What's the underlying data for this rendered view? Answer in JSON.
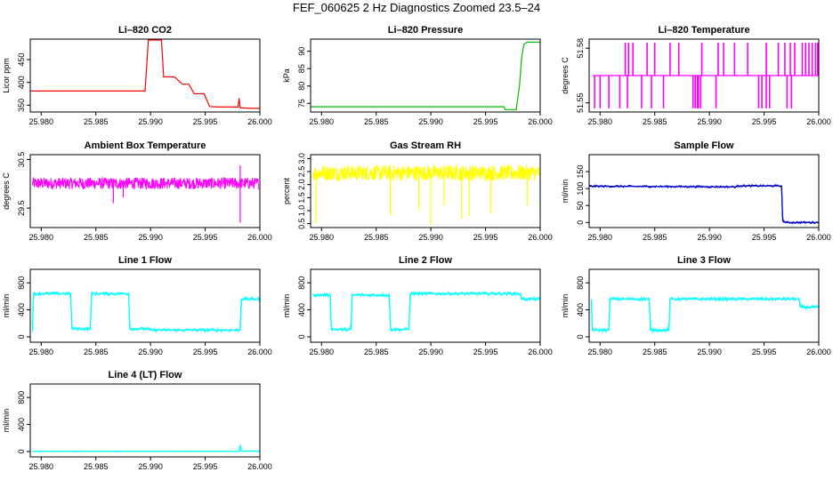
{
  "page_title": "FEF_060625  2 Hz Diagnostics Zoomed 23.5–24",
  "chart_data": [
    {
      "type": "line",
      "title": "Li–820 CO2",
      "ylabel": "Licor ppm",
      "xlim": [
        25.979,
        26.0
      ],
      "ylim": [
        335,
        495
      ],
      "xticks": [
        "25.980",
        "25.985",
        "25.990",
        "25.995",
        "26.000"
      ],
      "xtick_values": [
        25.98,
        25.985,
        25.99,
        25.995,
        26.0
      ],
      "yticks": [
        "350",
        "400",
        "450"
      ],
      "ytick_values": [
        350,
        400,
        450
      ],
      "color": "#ff0000",
      "series": [
        {
          "x": [
            25.979,
            25.9895,
            25.9898,
            25.991,
            25.9912,
            25.9922,
            25.9929,
            25.9935,
            25.994,
            25.9949,
            25.9954,
            25.9962,
            25.9975,
            25.998,
            25.9981,
            25.9982,
            25.9985,
            25.999,
            26.0
          ],
          "y": [
            381,
            381,
            493,
            493,
            412,
            412,
            396,
            396,
            375,
            375,
            347,
            346,
            346,
            346,
            365,
            344,
            344,
            343,
            343
          ]
        }
      ]
    },
    {
      "type": "line",
      "title": "Li–820 Pressure",
      "ylabel": "kPa",
      "xlim": [
        25.979,
        26.0
      ],
      "ylim": [
        72.5,
        93.5
      ],
      "xticks": [
        "25.980",
        "25.985",
        "25.990",
        "25.995",
        "26.000"
      ],
      "xtick_values": [
        25.98,
        25.985,
        25.99,
        25.995,
        26.0
      ],
      "yticks": [
        "75",
        "80",
        "85",
        "90"
      ],
      "ytick_values": [
        75,
        80,
        85,
        90
      ],
      "color": "#00bb00",
      "series": [
        {
          "x": [
            25.979,
            25.9967,
            25.9968,
            25.9978,
            25.9981,
            25.9983,
            25.9985,
            25.9988,
            26.0
          ],
          "y": [
            74,
            74,
            73.2,
            73.2,
            80,
            88,
            92,
            92.6,
            92.6
          ]
        }
      ]
    },
    {
      "type": "line",
      "title": "Li–820 Temperature",
      "ylabel": "degrees C",
      "xlim": [
        25.979,
        26.0
      ],
      "ylim": [
        51.545,
        51.585
      ],
      "xticks": [
        "25.980",
        "25.985",
        "25.990",
        "25.995",
        "26.000"
      ],
      "xtick_values": [
        25.98,
        25.985,
        25.99,
        25.995,
        26.0
      ],
      "yticks": [
        "51.55",
        "51.58"
      ],
      "ytick_values": [
        51.55,
        51.58
      ],
      "color": "#ff00ff",
      "baseline": 51.565,
      "high": 51.583,
      "low": 51.547,
      "spikes_up": [
        25.9823,
        25.9826,
        25.983,
        25.9843,
        25.985,
        25.9864,
        25.9872,
        25.9893,
        25.9908,
        25.9913,
        25.9923,
        25.9935,
        25.9952,
        25.9963,
        25.9969,
        25.9974,
        25.9978,
        25.9985,
        25.9988,
        25.9991,
        25.9994,
        25.9997,
        25.9999
      ],
      "spikes_down": [
        25.9795,
        25.98,
        25.9808,
        25.9818,
        25.9825,
        25.9838,
        25.9847,
        25.9858,
        25.9885,
        25.9887,
        25.9889,
        25.989,
        25.9892,
        25.9906,
        25.9945,
        25.9948,
        25.9952,
        25.9955,
        25.9971,
        25.9975
      ]
    },
    {
      "type": "line",
      "title": "Ambient Box Temperature",
      "ylabel": "degrees C",
      "xlim": [
        25.979,
        26.0
      ],
      "ylim": [
        29.1,
        30.6
      ],
      "xticks": [
        "25.980",
        "25.985",
        "25.990",
        "25.995",
        "26.000"
      ],
      "xtick_values": [
        25.98,
        25.985,
        25.99,
        25.995,
        26.0
      ],
      "yticks": [
        "29.5",
        "30.5"
      ],
      "ytick_values": [
        29.5,
        30.5
      ],
      "color": "#ff00ff",
      "noise": {
        "center": 30.01,
        "amplitude": 0.12
      },
      "spikes": [
        [
          25.9866,
          29.6
        ],
        [
          25.9875,
          29.72
        ],
        [
          25.9982,
          29.2
        ],
        [
          25.9982,
          30.38
        ]
      ]
    },
    {
      "type": "line",
      "title": "Gas Stream RH",
      "ylabel": "percent",
      "xlim": [
        25.979,
        26.0
      ],
      "ylim": [
        0.35,
        3.15
      ],
      "xticks": [
        "25.980",
        "25.985",
        "25.990",
        "25.995",
        "26.000"
      ],
      "xtick_values": [
        25.98,
        25.985,
        25.99,
        25.995,
        26.0
      ],
      "yticks": [
        "0.5",
        "1.0",
        "1.5",
        "2.0",
        "2.5",
        "3.0"
      ],
      "ytick_values": [
        0.5,
        1.0,
        1.5,
        2.0,
        2.5,
        3.0
      ],
      "color": "#ffff00",
      "noise": {
        "center": 2.45,
        "amplitude": 0.3
      },
      "spikes": [
        [
          25.9795,
          0.5
        ],
        [
          25.9863,
          0.8
        ],
        [
          25.9889,
          1.0
        ],
        [
          25.99,
          0.45
        ],
        [
          25.9912,
          1.2
        ],
        [
          25.9928,
          0.7
        ],
        [
          25.9935,
          0.8
        ],
        [
          25.9955,
          0.9
        ],
        [
          25.9988,
          1.2
        ]
      ]
    },
    {
      "type": "line",
      "title": "Sample Flow",
      "ylabel": "ml/min",
      "xlim": [
        25.979,
        26.0
      ],
      "ylim": [
        -15,
        200
      ],
      "xticks": [
        "25.980",
        "25.985",
        "25.990",
        "25.995",
        "26.000"
      ],
      "xtick_values": [
        25.98,
        25.985,
        25.99,
        25.995,
        26.0
      ],
      "yticks": [
        "0",
        "50",
        "100",
        "150"
      ],
      "ytick_values": [
        0,
        50,
        100,
        150
      ],
      "color": "#0000cc",
      "series": [
        {
          "x": [
            25.979,
            25.9925,
            25.9926,
            25.9966,
            25.9967,
            25.997,
            26.0
          ],
          "y": [
            107,
            105,
            108,
            108,
            5,
            0,
            0
          ]
        }
      ],
      "noise": {
        "amplitude": 3
      }
    },
    {
      "type": "line",
      "title": "Line 1 Flow",
      "ylabel": "ml/min",
      "xlim": [
        25.979,
        26.0
      ],
      "ylim": [
        -80,
        1000
      ],
      "xticks": [
        "25.980",
        "25.985",
        "25.990",
        "25.995",
        "26.000"
      ],
      "xtick_values": [
        25.98,
        25.985,
        25.99,
        25.995,
        26.0
      ],
      "yticks": [
        "0",
        "400",
        "800"
      ],
      "ytick_values": [
        0,
        400,
        800
      ],
      "color": "#00ffff",
      "series": [
        {
          "x": [
            25.9792,
            25.9793,
            25.9827,
            25.9828,
            25.9845,
            25.9846,
            25.988,
            25.9881,
            25.9898,
            25.9899,
            25.9982,
            25.9983,
            26.0
          ],
          "y": [
            100,
            640,
            640,
            120,
            120,
            640,
            640,
            120,
            120,
            100,
            100,
            560,
            560
          ]
        }
      ],
      "noise": {
        "amplitude": 25
      }
    },
    {
      "type": "line",
      "title": "Line 2 Flow",
      "ylabel": "ml/min",
      "xlim": [
        25.979,
        26.0
      ],
      "ylim": [
        -80,
        1000
      ],
      "xticks": [
        "25.980",
        "25.985",
        "25.990",
        "25.995",
        "26.000"
      ],
      "xtick_values": [
        25.98,
        25.985,
        25.99,
        25.995,
        26.0
      ],
      "yticks": [
        "0",
        "400",
        "800"
      ],
      "ytick_values": [
        0,
        400,
        800
      ],
      "color": "#00ffff",
      "series": [
        {
          "x": [
            25.9792,
            25.9808,
            25.9809,
            25.9827,
            25.9828,
            25.9862,
            25.9863,
            25.988,
            25.9881,
            25.9982,
            25.9983,
            26.0
          ],
          "y": [
            620,
            620,
            110,
            110,
            620,
            620,
            110,
            110,
            640,
            640,
            560,
            560
          ]
        }
      ],
      "noise": {
        "amplitude": 25
      }
    },
    {
      "type": "line",
      "title": "Line 3 Flow",
      "ylabel": "ml/min",
      "xlim": [
        25.979,
        26.0
      ],
      "ylim": [
        -80,
        1000
      ],
      "xticks": [
        "25.980",
        "25.985",
        "25.990",
        "25.995",
        "26.000"
      ],
      "xtick_values": [
        25.98,
        25.985,
        25.99,
        25.995,
        26.0
      ],
      "yticks": [
        "0",
        "400",
        "800"
      ],
      "ytick_values": [
        0,
        400,
        800
      ],
      "color": "#00ffff",
      "series": [
        {
          "x": [
            25.9792,
            25.9793,
            25.9808,
            25.9809,
            25.9845,
            25.9846,
            25.9863,
            25.9864,
            25.9982,
            25.9983,
            26.0
          ],
          "y": [
            550,
            100,
            100,
            560,
            560,
            100,
            100,
            560,
            560,
            440,
            440
          ]
        }
      ],
      "noise": {
        "amplitude": 25
      }
    },
    {
      "type": "line",
      "title": "Line 4 (LT) Flow",
      "ylabel": "ml/min",
      "xlim": [
        25.979,
        26.0
      ],
      "ylim": [
        -80,
        1000
      ],
      "xticks": [
        "25.980",
        "25.985",
        "25.990",
        "25.995",
        "26.000"
      ],
      "xtick_values": [
        25.98,
        25.985,
        25.99,
        25.995,
        26.0
      ],
      "yticks": [
        "0",
        "400",
        "800"
      ],
      "ytick_values": [
        0,
        400,
        800
      ],
      "color": "#00ffff",
      "series": [
        {
          "x": [
            25.9792,
            25.9981,
            25.9982,
            25.9983,
            26.0
          ],
          "y": [
            2,
            2,
            100,
            5,
            5
          ]
        }
      ],
      "noise": {
        "amplitude": 3
      }
    }
  ]
}
